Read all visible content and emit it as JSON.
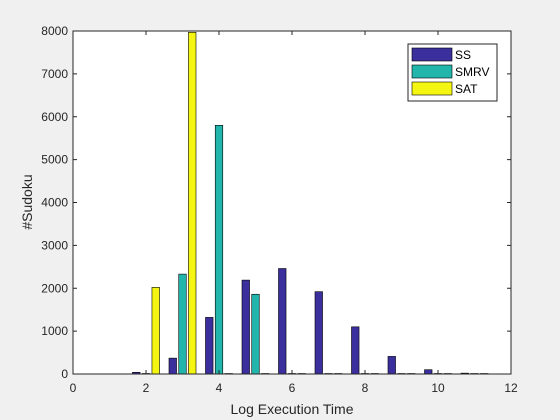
{
  "chart_data": {
    "type": "bar",
    "xlabel": "Log Execution Time",
    "ylabel": "#Sudoku",
    "xlim": [
      0,
      12
    ],
    "ylim": [
      0,
      8000
    ],
    "xticks": [
      0,
      2,
      4,
      6,
      8,
      10,
      12
    ],
    "yticks": [
      0,
      1000,
      2000,
      3000,
      4000,
      5000,
      6000,
      7000,
      8000
    ],
    "grid": false,
    "legend_position": "top-right",
    "bin_centers": [
      2,
      3,
      4,
      5,
      6,
      7,
      8,
      9,
      10,
      11
    ],
    "series": [
      {
        "name": "SS",
        "color": "#3b2f9e",
        "values": [
          40,
          370,
          1320,
          2190,
          2460,
          1920,
          1100,
          410,
          100,
          20
        ]
      },
      {
        "name": "SMRV",
        "color": "#22b5ac",
        "values": [
          0,
          2330,
          5800,
          1860,
          0,
          0,
          0,
          0,
          0,
          0
        ]
      },
      {
        "name": "SAT",
        "color": "#f5f512",
        "values": [
          2020,
          7970,
          0,
          0,
          0,
          0,
          0,
          0,
          0,
          0
        ]
      }
    ]
  }
}
